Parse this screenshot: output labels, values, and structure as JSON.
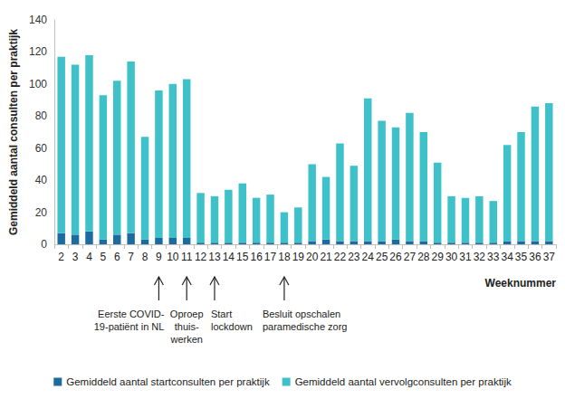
{
  "chart_data": {
    "type": "bar",
    "stacked": true,
    "grid": false,
    "legend": "bottom",
    "y_label": "Gemiddeld aantal consulten per praktijk",
    "x_label": "Weeknummer",
    "categories": [
      "2",
      "3",
      "4",
      "5",
      "6",
      "7",
      "8",
      "9",
      "10",
      "11",
      "12",
      "13",
      "14",
      "15",
      "16",
      "17",
      "18",
      "19",
      "20",
      "21",
      "22",
      "23",
      "24",
      "25",
      "26",
      "27",
      "28",
      "29",
      "30",
      "31",
      "32",
      "33",
      "34",
      "35",
      "36",
      "37"
    ],
    "series": [
      {
        "name": "Gemiddeld aantal startconsulten per praktijk",
        "color": "#1c6b9e",
        "values": [
          7,
          6,
          8,
          3,
          6,
          7,
          3,
          4,
          4,
          4,
          1,
          1,
          1,
          1,
          1,
          1,
          1,
          1,
          2,
          3,
          2,
          2,
          2,
          2,
          3,
          2,
          2,
          1,
          1,
          1,
          1,
          1,
          2,
          2,
          2,
          2
        ]
      },
      {
        "name": "Gemiddeld aantal vervolgconsulten per praktijk",
        "color": "#3fc1c9",
        "values": [
          110,
          106,
          110,
          90,
          96,
          107,
          64,
          92,
          96,
          99,
          31,
          29,
          33,
          37,
          28,
          30,
          19,
          22,
          48,
          39,
          61,
          47,
          89,
          75,
          70,
          80,
          68,
          50,
          29,
          28,
          29,
          26,
          60,
          68,
          84,
          86
        ]
      }
    ],
    "ylim": [
      0,
      140
    ],
    "yticks": [
      0,
      20,
      40,
      60,
      80,
      100,
      120,
      140
    ],
    "annotations": [
      {
        "x": "9",
        "text": "Eerste COVID-\n19-patiënt in NL"
      },
      {
        "x": "11",
        "text": "Oproep\nthuis-\nwerken"
      },
      {
        "x": "13",
        "text": "Start\nlockdown"
      },
      {
        "x": "18",
        "text": "Besluit opschalen\nparamedische zorg"
      }
    ]
  }
}
